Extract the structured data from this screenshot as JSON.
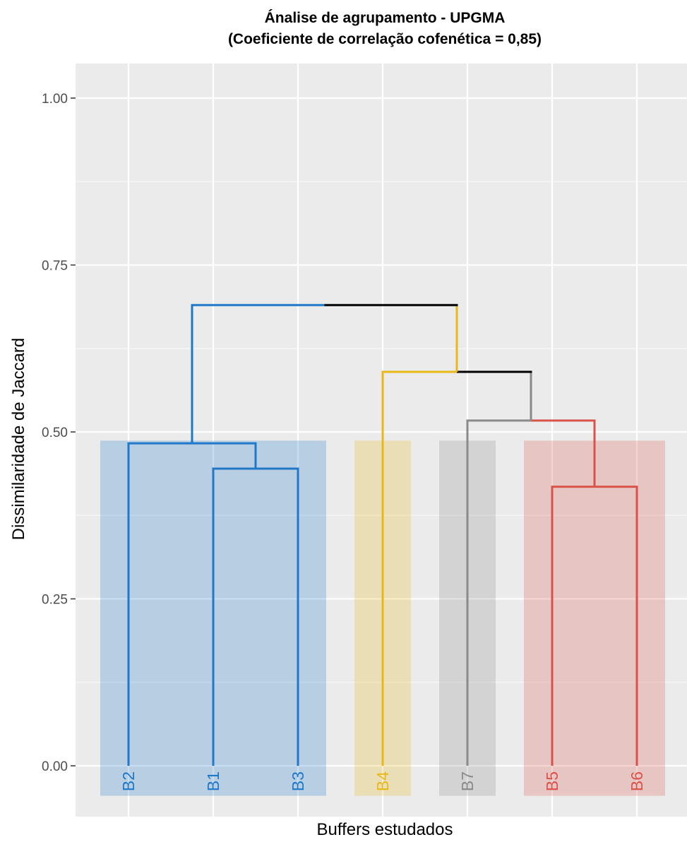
{
  "chart_data": {
    "type": "dendrogram",
    "title": "Ánalise de agrupamento - UPGMA",
    "subtitle": "(Coeficiente de correlação cofenética = 0,85)",
    "xlabel": "Buffers estudados",
    "ylabel": "Dissimilaridade de Jaccard",
    "ylim": [
      -0.05,
      1.05
    ],
    "yticks": [
      0.0,
      0.25,
      0.5,
      0.75,
      1.0
    ],
    "ytick_labels": [
      "0.00",
      "0.25",
      "0.50",
      "0.75",
      "1.00"
    ],
    "grid": true,
    "leaves": [
      {
        "label": "B2",
        "pos": 1,
        "color": "#1f78c8"
      },
      {
        "label": "B1",
        "pos": 2,
        "color": "#1f78c8"
      },
      {
        "label": "B3",
        "pos": 3,
        "color": "#1f78c8"
      },
      {
        "label": "B4",
        "pos": 4,
        "color": "#e8b81a"
      },
      {
        "label": "B7",
        "pos": 5,
        "color": "#8a8a8a"
      },
      {
        "label": "B5",
        "pos": 6,
        "color": "#d9534a"
      },
      {
        "label": "B6",
        "pos": 7,
        "color": "#d9534a"
      }
    ],
    "merges": [
      {
        "left": "B1",
        "right": "B3",
        "height": 0.445,
        "color": "#1f78c8"
      },
      {
        "left": "B2",
        "right": "B1+B3",
        "height": 0.483,
        "color": "#1f78c8"
      },
      {
        "left": "B5",
        "right": "B6",
        "height": 0.418,
        "color": "#d9534a"
      },
      {
        "left": "B7",
        "right": "B5+B6",
        "height": 0.517,
        "color": "#8a8a8a",
        "right_color": "#d9534a"
      },
      {
        "left": "B4",
        "right": "B7+B5+B6",
        "height": 0.59,
        "color": "#e8b81a",
        "right_color": "#000000"
      },
      {
        "left": "B2+B1+B3",
        "right": "B4+B7+B5+B6",
        "height": 0.69,
        "color": "#1f78c8",
        "right_color": "#000000"
      }
    ],
    "cluster_rects": [
      {
        "from": 1,
        "to": 3,
        "color": "#1f78c8"
      },
      {
        "from": 4,
        "to": 4,
        "color": "#e8b81a"
      },
      {
        "from": 5,
        "to": 5,
        "color": "#8a8a8a"
      },
      {
        "from": 6,
        "to": 7,
        "color": "#d9534a"
      }
    ],
    "rect_top": 0.487,
    "rect_bottom": -0.045
  }
}
